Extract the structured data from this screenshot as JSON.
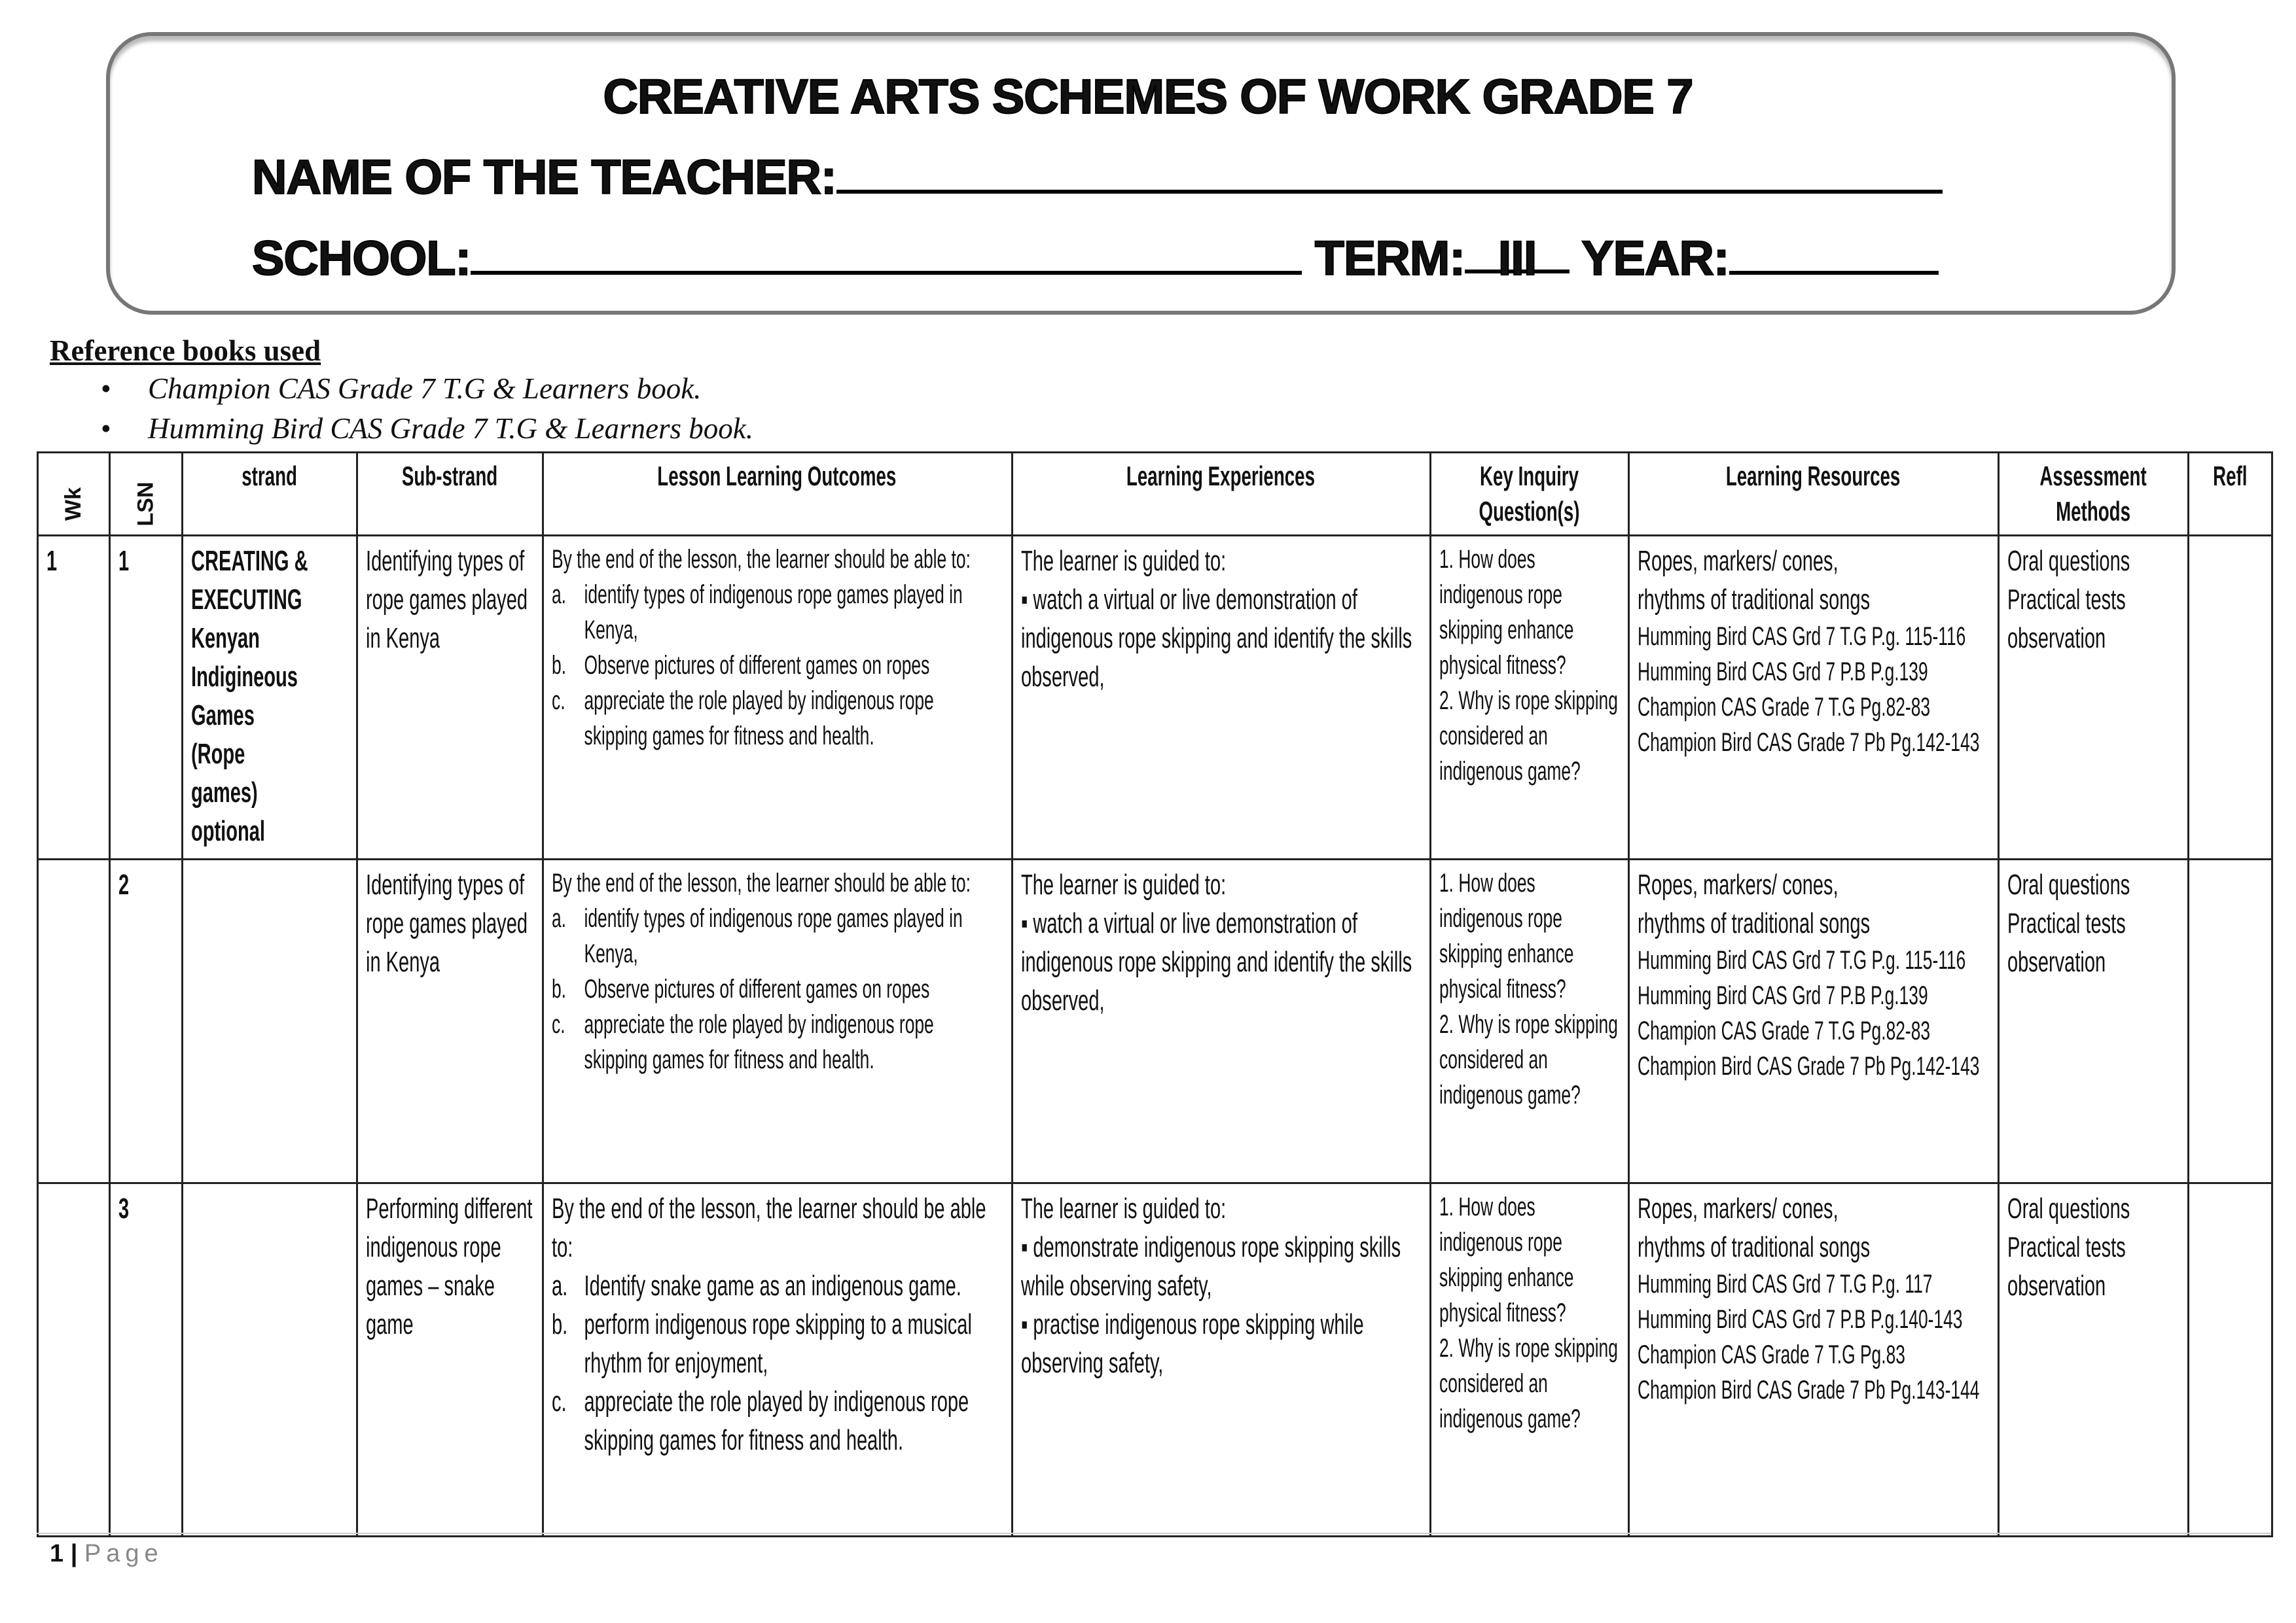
{
  "header": {
    "title": "CREATIVE ARTS SCHEMES OF WORK GRADE 7",
    "teacher_label": "NAME OF THE TEACHER:",
    "school_label": "SCHOOL:",
    "term_label": "TERM:",
    "term_value": "III",
    "year_label": "YEAR:"
  },
  "references": {
    "heading": "Reference books used",
    "items": [
      "Champion CAS Grade 7 T.G & Learners book.",
      "Humming Bird CAS Grade 7 T.G & Learners book."
    ]
  },
  "table": {
    "columns": [
      "Wk",
      "LSN",
      "strand",
      "Sub-strand",
      "Lesson Learning Outcomes",
      "Learning Experiences",
      "Key Inquiry Question(s)",
      "Learning Resources",
      "Assessment Methods",
      "Refl"
    ],
    "rows": [
      {
        "wk": "1",
        "lsn": "1",
        "strand": [
          "CREATING &",
          "EXECUTING",
          "Kenyan",
          "Indigineous",
          "Games",
          "(Rope",
          "games)",
          "optional"
        ],
        "substrand": "Identifying types of rope games played in Kenya",
        "outcomes": {
          "intro": "By the end of the lesson, the learner should be able to:",
          "items": [
            {
              "k": "a.",
              "t": "identify types of indigenous rope games played in Kenya,"
            },
            {
              "k": "b.",
              "t": "Observe pictures of different games on ropes"
            },
            {
              "k": "c.",
              "t": "appreciate the role played by indigenous rope skipping games for fitness and health."
            }
          ]
        },
        "experiences": {
          "intro": "The learner is guided to:",
          "items": [
            "▪ watch a virtual or live demonstration of indigenous rope skipping and identify the skills observed,"
          ]
        },
        "questions": [
          "1. How does indigenous rope skipping enhance physical fitness?",
          "2. Why is rope skipping considered an indigenous game?"
        ],
        "resources": {
          "main": [
            "Ropes, markers/ cones,",
            "rhythms of traditional songs"
          ],
          "books": [
            "Humming Bird CAS Grd 7 T.G P.g. 115-116",
            "Humming Bird CAS Grd 7 P.B P.g.139",
            "Champion CAS Grade 7 T.G Pg.82-83",
            "Champion Bird CAS Grade 7 Pb Pg.142-143"
          ]
        },
        "assessment": [
          "Oral questions",
          "Practical tests",
          "observation"
        ],
        "refl": ""
      },
      {
        "wk": "",
        "lsn": "2",
        "strand": [],
        "substrand": "Identifying types of rope games played in Kenya",
        "outcomes": {
          "intro": "By the end of the lesson, the learner should be able to:",
          "items": [
            {
              "k": "a.",
              "t": "identify types of indigenous rope games played in Kenya,"
            },
            {
              "k": "b.",
              "t": "Observe pictures of different games on ropes"
            },
            {
              "k": "c.",
              "t": "appreciate the role played by indigenous rope skipping games for fitness and health."
            }
          ]
        },
        "experiences": {
          "intro": "The learner is guided to:",
          "items": [
            "▪ watch a virtual or live demonstration of indigenous rope skipping and identify the skills observed,"
          ]
        },
        "questions": [
          "1. How does indigenous rope skipping enhance physical fitness?",
          "2. Why is rope skipping considered an indigenous game?"
        ],
        "resources": {
          "main": [
            "Ropes, markers/ cones,",
            "rhythms of traditional songs"
          ],
          "books": [
            "Humming Bird CAS Grd 7 T.G P.g. 115-116",
            "Humming Bird CAS Grd 7 P.B P.g.139",
            "Champion CAS Grade 7 T.G Pg.82-83",
            "Champion Bird CAS Grade 7 Pb Pg.142-143"
          ]
        },
        "assessment": [
          "Oral questions",
          "Practical tests",
          "observation"
        ],
        "refl": ""
      },
      {
        "wk": "",
        "lsn": "3",
        "strand": [],
        "substrand": "Performing different indigenous rope games – snake game",
        "outcomes": {
          "intro": "By the end of the lesson, the learner should be able to:",
          "items": [
            {
              "k": "a.",
              "t": "Identify snake game as an indigenous game."
            },
            {
              "k": "b.",
              "t": "perform indigenous rope skipping to a musical rhythm for enjoyment,"
            },
            {
              "k": "c.",
              "t": "appreciate the role played by indigenous rope skipping games for fitness and health."
            }
          ]
        },
        "experiences": {
          "intro": "The learner is guided to:",
          "items": [
            "▪ demonstrate indigenous rope skipping skills while observing safety,",
            "▪ practise indigenous rope skipping while observing safety,"
          ]
        },
        "questions": [
          "1. How does indigenous rope skipping enhance physical fitness?",
          "2. Why is rope skipping considered an indigenous game?"
        ],
        "resources": {
          "main": [
            "Ropes, markers/ cones,",
            "rhythms of traditional songs"
          ],
          "books": [
            "Humming Bird CAS Grd 7 T.G P.g. 117",
            "Humming Bird CAS Grd 7 P.B P.g.140-143",
            "Champion CAS Grade 7 T.G Pg.83",
            "Champion Bird CAS Grade 7 Pb Pg.143-144"
          ]
        },
        "assessment": [
          "Oral questions",
          "Practical tests",
          "observation"
        ],
        "refl": ""
      }
    ]
  },
  "footer": {
    "page_number": "1",
    "separator": "|",
    "page_label": "Page"
  }
}
